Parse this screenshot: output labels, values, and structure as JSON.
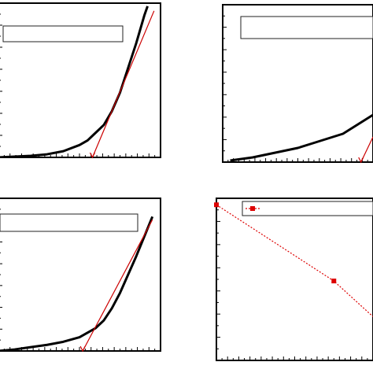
{
  "colors": {
    "axis": "#000000",
    "curve": "#000000",
    "fit": "#cc0000",
    "marker": "#dd0000"
  },
  "chart_data": [
    {
      "type": "line",
      "panel": "top-left",
      "title": "",
      "xlabel": "",
      "ylabel": "",
      "xlim": [
        0,
        10
      ],
      "ylim": [
        0,
        10
      ],
      "grid": false,
      "legend": {
        "position": "top",
        "entries": [
          ""
        ]
      },
      "series": [
        {
          "kind": "curve",
          "x": [
            0,
            1,
            2,
            3,
            4,
            5,
            5.5,
            6,
            6.5,
            7,
            7.5,
            8,
            8.5,
            9,
            9.2
          ],
          "y": [
            0,
            0.05,
            0.1,
            0.2,
            0.4,
            0.8,
            1.1,
            1.6,
            2.1,
            3.0,
            4.2,
            5.8,
            7.4,
            9.2,
            9.8
          ]
        },
        {
          "kind": "tangent",
          "x": [
            5.8,
            9.6
          ],
          "y": [
            0,
            9.5
          ]
        }
      ]
    },
    {
      "type": "line",
      "panel": "top-right",
      "title": "",
      "xlabel": "",
      "ylabel": "",
      "xlim": [
        0,
        10
      ],
      "ylim": [
        0,
        10
      ],
      "grid": false,
      "legend": {
        "position": "top",
        "entries": [
          ""
        ]
      },
      "series": [
        {
          "kind": "curve",
          "x": [
            0.5,
            2,
            3.5,
            5,
            6,
            7,
            8,
            9,
            9.5,
            10
          ],
          "y": [
            0.1,
            0.3,
            0.6,
            0.9,
            1.2,
            1.5,
            1.8,
            2.4,
            2.7,
            3.0
          ]
        },
        {
          "kind": "tangent",
          "x": [
            9.2,
            10
          ],
          "y": [
            0,
            1.6
          ]
        }
      ]
    },
    {
      "type": "line",
      "panel": "bottom-left",
      "title": "",
      "xlabel": "",
      "ylabel": "",
      "xlim": [
        0,
        10
      ],
      "ylim": [
        0,
        10
      ],
      "grid": false,
      "legend": {
        "position": "top",
        "entries": [
          ""
        ]
      },
      "series": [
        {
          "kind": "curve",
          "x": [
            0,
            1,
            2,
            3,
            4,
            5,
            6,
            6.5,
            7,
            7.5,
            8,
            8.5,
            9,
            9.5
          ],
          "y": [
            0,
            0.1,
            0.25,
            0.4,
            0.6,
            0.9,
            1.5,
            2.0,
            2.8,
            3.8,
            5.0,
            6.2,
            7.5,
            8.8
          ]
        },
        {
          "kind": "tangent",
          "x": [
            5.2,
            9.5
          ],
          "y": [
            0,
            8.6
          ]
        }
      ]
    },
    {
      "type": "line",
      "panel": "bottom-right",
      "title": "",
      "xlabel": "",
      "ylabel": "",
      "xlim": [
        0,
        10
      ],
      "ylim": [
        0,
        10
      ],
      "grid": false,
      "legend": {
        "position": "top-left",
        "entries": [
          ""
        ]
      },
      "series": [
        {
          "kind": "markers-dotted",
          "x": [
            0,
            7.5,
            10
          ],
          "y": [
            9.6,
            4.9,
            2.7
          ]
        }
      ]
    }
  ]
}
